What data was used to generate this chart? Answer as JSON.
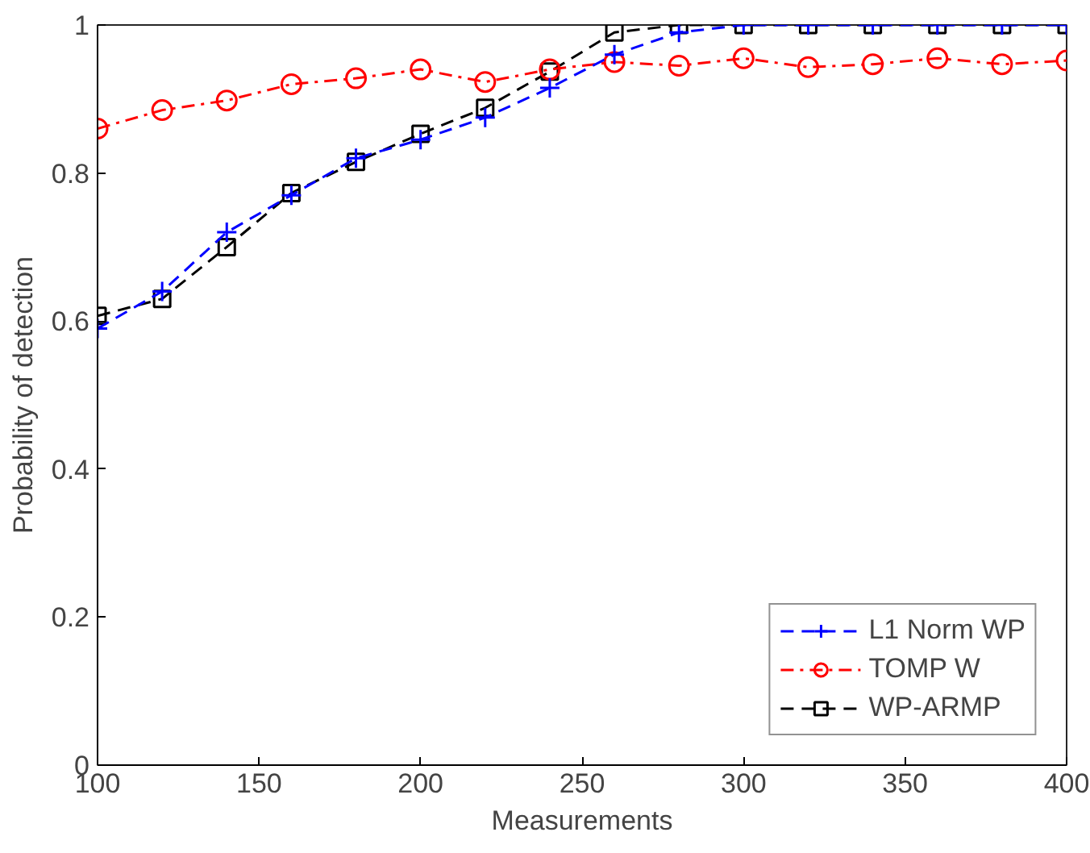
{
  "chart_data": {
    "type": "line",
    "xlabel": "Measurements",
    "ylabel": "Probability of detection",
    "x": [
      100,
      120,
      140,
      160,
      180,
      200,
      220,
      240,
      260,
      280,
      300,
      320,
      340,
      360,
      380,
      400
    ],
    "xlim": [
      100,
      400
    ],
    "xticks": [
      100,
      150,
      200,
      250,
      300,
      350,
      400
    ],
    "ylim": [
      0,
      1
    ],
    "yticks": [
      0,
      0.2,
      0.4,
      0.6,
      0.8,
      1
    ],
    "grid": false,
    "legend": "bottom right",
    "series": [
      {
        "name": "L1 Norm WP",
        "color": "#0000ff",
        "marker": "cross",
        "line_style": "dashed",
        "values": [
          0.59,
          0.64,
          0.72,
          0.77,
          0.82,
          0.845,
          0.875,
          0.915,
          0.96,
          0.99,
          1,
          1,
          1,
          1,
          1,
          1
        ]
      },
      {
        "name": "TOMP W",
        "color": "#ff0000",
        "marker": "circle",
        "line_style": "dashdot",
        "values": [
          0.86,
          0.885,
          0.898,
          0.92,
          0.928,
          0.94,
          0.923,
          0.94,
          0.95,
          0.945,
          0.955,
          0.943,
          0.947,
          0.955,
          0.947,
          0.952
        ]
      },
      {
        "name": "WP-ARMP",
        "color": "#000000",
        "marker": "square",
        "line_style": "dashed",
        "values": [
          0.607,
          0.63,
          0.7,
          0.773,
          0.815,
          0.853,
          0.888,
          0.937,
          0.99,
          1,
          1,
          1,
          1,
          1,
          1,
          1
        ]
      }
    ]
  }
}
